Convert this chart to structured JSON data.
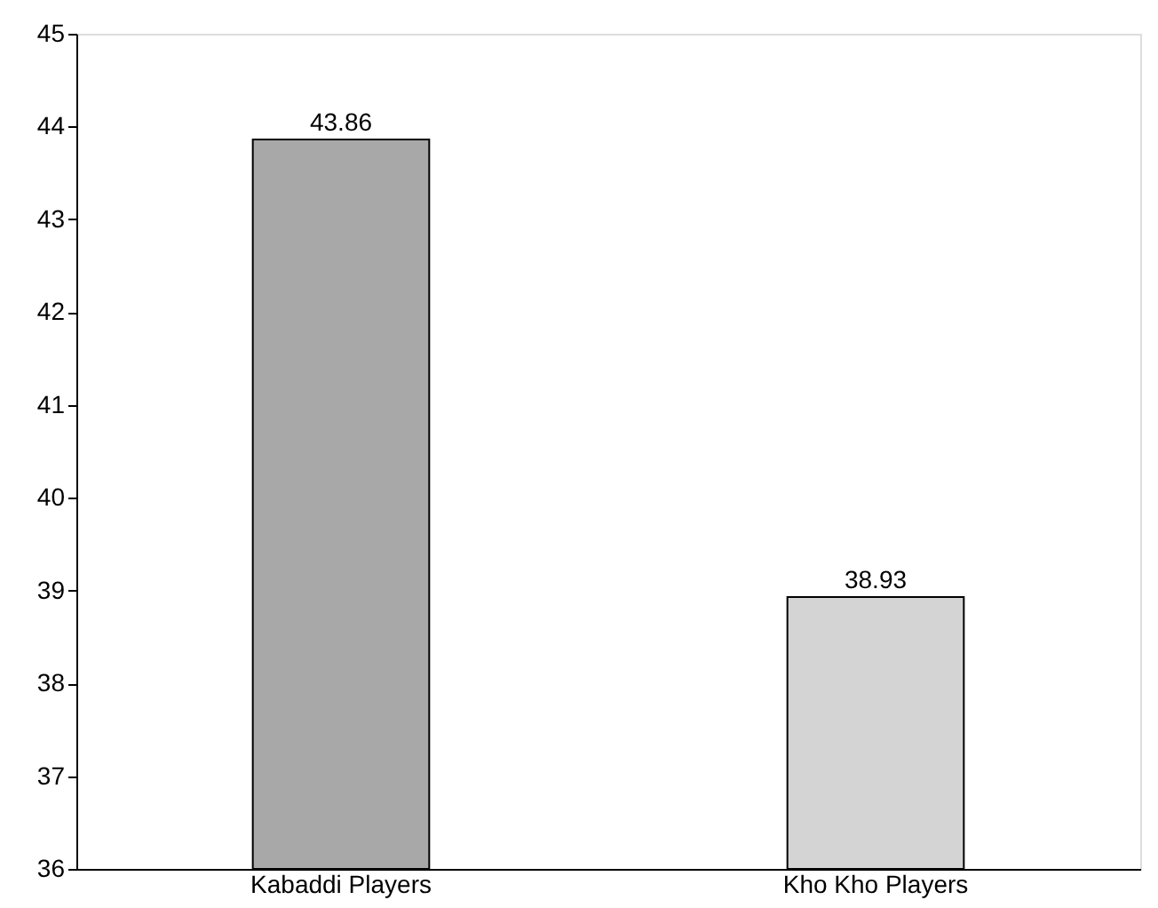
{
  "chart_data": {
    "type": "bar",
    "categories": [
      "Kabaddi Players",
      "Kho Kho Players"
    ],
    "values": [
      43.86,
      38.93
    ],
    "colors": [
      "#a8a8a8",
      "#d4d4d4"
    ],
    "ylim": [
      36,
      45
    ],
    "yticks": [
      36,
      37,
      38,
      39,
      40,
      41,
      42,
      43,
      44,
      45
    ],
    "data_labels": true
  }
}
